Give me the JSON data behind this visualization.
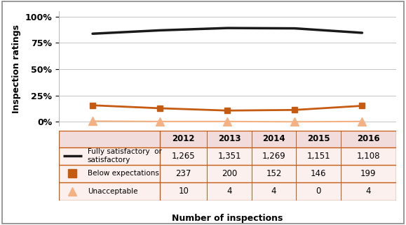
{
  "years": [
    2012,
    2013,
    2014,
    2015,
    2016
  ],
  "fully_sat": [
    1265,
    1351,
    1269,
    1151,
    1108
  ],
  "below_exp": [
    237,
    200,
    152,
    146,
    199
  ],
  "unacceptable": [
    10,
    4,
    4,
    0,
    4
  ],
  "fully_sat_pct": [
    83.66,
    86.88,
    89.05,
    88.74,
    84.51
  ],
  "below_exp_pct": [
    15.67,
    12.86,
    10.67,
    11.26,
    15.18
  ],
  "unacceptable_pct": [
    0.66,
    0.26,
    0.28,
    0.0,
    0.31
  ],
  "line_color_black": "#1a1a1a",
  "line_color_orange": "#C55A11",
  "triangle_color": "#F4B183",
  "table_header_bg": "#F2DCDB",
  "table_row_bg": "#FBF0EE",
  "table_border_color": "#C55A11",
  "ylabel": "Inspection ratings",
  "xlabel": "Number of inspections",
  "yticks": [
    0,
    25,
    50,
    75,
    100
  ],
  "ytick_labels": [
    "0%",
    "25%",
    "50%",
    "75%",
    "100%"
  ],
  "fig_border_color": "#888888"
}
